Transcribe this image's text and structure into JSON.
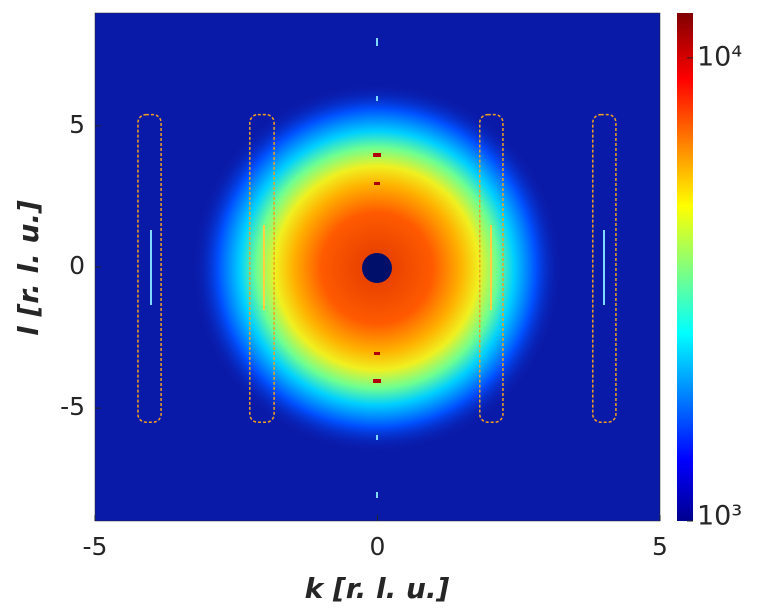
{
  "chart_data": {
    "type": "image",
    "xlabel": "k [r. l. u.]",
    "ylabel": "l [r. l. u.]",
    "xlim": [
      -5,
      5
    ],
    "ylim": [
      -9,
      9
    ],
    "xticks": [
      -5,
      0,
      5
    ],
    "yticks": [
      -5,
      0,
      5
    ],
    "colormap": "jet",
    "color_scale": "log",
    "clim": [
      1000,
      12500
    ],
    "cticks": [
      {
        "value": 1000,
        "label": "10³"
      },
      {
        "value": 10000,
        "label": "10⁴"
      }
    ],
    "region_color": "#f0a020",
    "regions": [
      {
        "k": [
          -4.24,
          -3.83
        ],
        "l": [
          -5.5,
          5.4
        ]
      },
      {
        "k": [
          -2.26,
          -1.83
        ],
        "l": [
          -5.5,
          5.4
        ]
      },
      {
        "k": [
          1.81,
          2.22
        ],
        "l": [
          -5.5,
          5.4
        ]
      },
      {
        "k": [
          3.81,
          4.22
        ],
        "l": [
          -5.5,
          5.4
        ]
      }
    ]
  }
}
